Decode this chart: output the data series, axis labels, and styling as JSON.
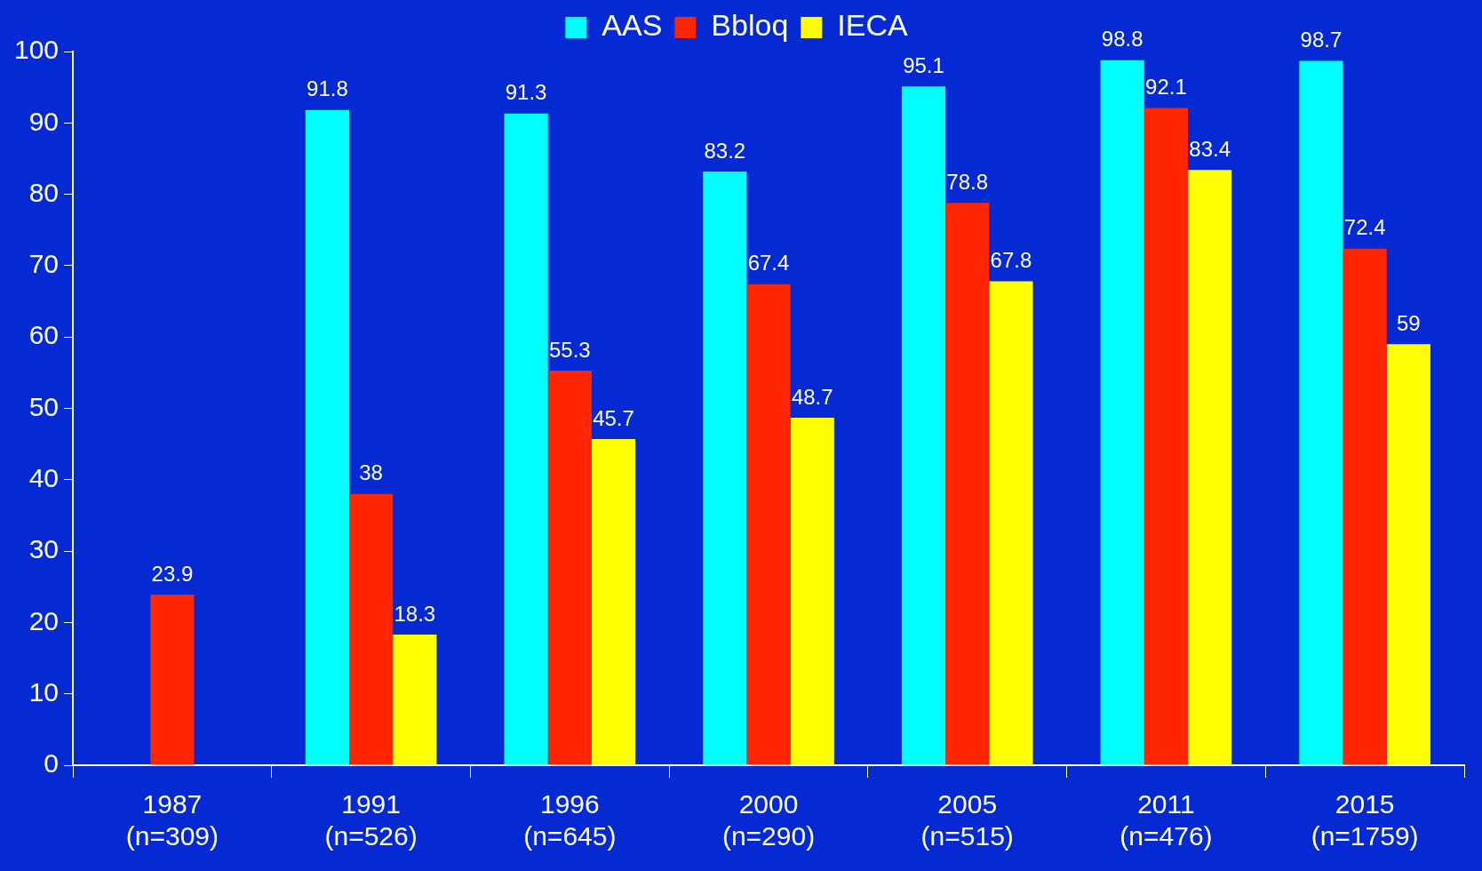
{
  "chart_data": {
    "type": "bar",
    "categories": [
      "1987\n(n=309)",
      "1991\n(n=526)",
      "1996\n(n=645)",
      "2000\n(n=290)",
      "2005\n(n=515)",
      "2011\n(n=476)",
      "2015\n(n=1759)"
    ],
    "series": [
      {
        "name": "AAS",
        "color": "#00ffff",
        "values": [
          null,
          91.8,
          91.3,
          83.2,
          95.1,
          98.8,
          98.7
        ]
      },
      {
        "name": "Bbloq",
        "color": "#ff2600",
        "values": [
          23.9,
          38,
          55.3,
          67.4,
          78.8,
          92.1,
          72.4
        ]
      },
      {
        "name": "IECA",
        "color": "#ffff00",
        "values": [
          null,
          18.3,
          45.7,
          48.7,
          67.8,
          83.4,
          59
        ]
      }
    ],
    "ylim": [
      0,
      100
    ],
    "yticks": [
      0,
      10,
      20,
      30,
      40,
      50,
      60,
      70,
      80,
      90,
      100
    ],
    "grid": false,
    "legend": "top",
    "data_labels": true
  }
}
